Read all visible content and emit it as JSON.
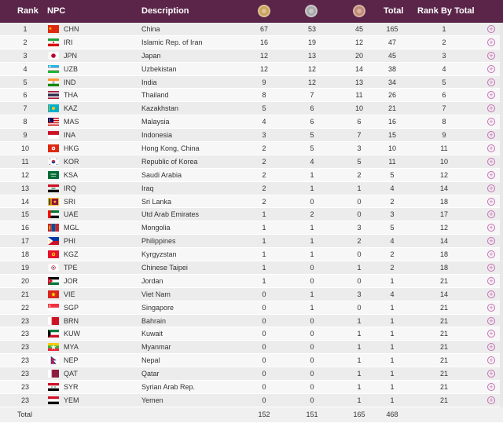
{
  "header": {
    "rank": "Rank",
    "npc": "NPC",
    "description": "Description",
    "total": "Total",
    "rank_by_total": "Rank By Total",
    "gold_icon": "gold-medal-icon",
    "silver_icon": "silver-medal-icon",
    "bronze_icon": "bronze-medal-icon"
  },
  "colors": {
    "header_bg": "#5a2549",
    "accent": "#c76bb5"
  },
  "rows": [
    {
      "rank": "1",
      "code": "CHN",
      "desc": "China",
      "gold": "67",
      "silver": "53",
      "bronze": "45",
      "total": "165",
      "rbt": "1",
      "flag": "chn"
    },
    {
      "rank": "2",
      "code": "IRI",
      "desc": "Islamic Rep. of Iran",
      "gold": "16",
      "silver": "19",
      "bronze": "12",
      "total": "47",
      "rbt": "2",
      "flag": "iri"
    },
    {
      "rank": "3",
      "code": "JPN",
      "desc": "Japan",
      "gold": "12",
      "silver": "13",
      "bronze": "20",
      "total": "45",
      "rbt": "3",
      "flag": "jpn"
    },
    {
      "rank": "4",
      "code": "UZB",
      "desc": "Uzbekistan",
      "gold": "12",
      "silver": "12",
      "bronze": "14",
      "total": "38",
      "rbt": "4",
      "flag": "uzb"
    },
    {
      "rank": "5",
      "code": "IND",
      "desc": "India",
      "gold": "9",
      "silver": "12",
      "bronze": "13",
      "total": "34",
      "rbt": "5",
      "flag": "ind"
    },
    {
      "rank": "6",
      "code": "THA",
      "desc": "Thailand",
      "gold": "8",
      "silver": "7",
      "bronze": "11",
      "total": "26",
      "rbt": "6",
      "flag": "tha"
    },
    {
      "rank": "7",
      "code": "KAZ",
      "desc": "Kazakhstan",
      "gold": "5",
      "silver": "6",
      "bronze": "10",
      "total": "21",
      "rbt": "7",
      "flag": "kaz"
    },
    {
      "rank": "8",
      "code": "MAS",
      "desc": "Malaysia",
      "gold": "4",
      "silver": "6",
      "bronze": "6",
      "total": "16",
      "rbt": "8",
      "flag": "mas"
    },
    {
      "rank": "9",
      "code": "INA",
      "desc": "Indonesia",
      "gold": "3",
      "silver": "5",
      "bronze": "7",
      "total": "15",
      "rbt": "9",
      "flag": "ina"
    },
    {
      "rank": "10",
      "code": "HKG",
      "desc": "Hong Kong, China",
      "gold": "2",
      "silver": "5",
      "bronze": "3",
      "total": "10",
      "rbt": "11",
      "flag": "hkg"
    },
    {
      "rank": "11",
      "code": "KOR",
      "desc": "Republic of Korea",
      "gold": "2",
      "silver": "4",
      "bronze": "5",
      "total": "11",
      "rbt": "10",
      "flag": "kor"
    },
    {
      "rank": "12",
      "code": "KSA",
      "desc": "Saudi Arabia",
      "gold": "2",
      "silver": "1",
      "bronze": "2",
      "total": "5",
      "rbt": "12",
      "flag": "ksa"
    },
    {
      "rank": "13",
      "code": "IRQ",
      "desc": "Iraq",
      "gold": "2",
      "silver": "1",
      "bronze": "1",
      "total": "4",
      "rbt": "14",
      "flag": "irq"
    },
    {
      "rank": "14",
      "code": "SRI",
      "desc": "Sri Lanka",
      "gold": "2",
      "silver": "0",
      "bronze": "0",
      "total": "2",
      "rbt": "18",
      "flag": "sri"
    },
    {
      "rank": "15",
      "code": "UAE",
      "desc": "Utd Arab Emirates",
      "gold": "1",
      "silver": "2",
      "bronze": "0",
      "total": "3",
      "rbt": "17",
      "flag": "uae"
    },
    {
      "rank": "16",
      "code": "MGL",
      "desc": "Mongolia",
      "gold": "1",
      "silver": "1",
      "bronze": "3",
      "total": "5",
      "rbt": "12",
      "flag": "mgl"
    },
    {
      "rank": "17",
      "code": "PHI",
      "desc": "Philippines",
      "gold": "1",
      "silver": "1",
      "bronze": "2",
      "total": "4",
      "rbt": "14",
      "flag": "phi"
    },
    {
      "rank": "18",
      "code": "KGZ",
      "desc": "Kyrgyzstan",
      "gold": "1",
      "silver": "1",
      "bronze": "0",
      "total": "2",
      "rbt": "18",
      "flag": "kgz"
    },
    {
      "rank": "19",
      "code": "TPE",
      "desc": "Chinese Taipei",
      "gold": "1",
      "silver": "0",
      "bronze": "1",
      "total": "2",
      "rbt": "18",
      "flag": "tpe"
    },
    {
      "rank": "20",
      "code": "JOR",
      "desc": "Jordan",
      "gold": "1",
      "silver": "0",
      "bronze": "0",
      "total": "1",
      "rbt": "21",
      "flag": "jor"
    },
    {
      "rank": "21",
      "code": "VIE",
      "desc": "Viet Nam",
      "gold": "0",
      "silver": "1",
      "bronze": "3",
      "total": "4",
      "rbt": "14",
      "flag": "vie"
    },
    {
      "rank": "22",
      "code": "SGP",
      "desc": "Singapore",
      "gold": "0",
      "silver": "1",
      "bronze": "0",
      "total": "1",
      "rbt": "21",
      "flag": "sgp"
    },
    {
      "rank": "23",
      "code": "BRN",
      "desc": "Bahrain",
      "gold": "0",
      "silver": "0",
      "bronze": "1",
      "total": "1",
      "rbt": "21",
      "flag": "brn"
    },
    {
      "rank": "23",
      "code": "KUW",
      "desc": "Kuwait",
      "gold": "0",
      "silver": "0",
      "bronze": "1",
      "total": "1",
      "rbt": "21",
      "flag": "kuw"
    },
    {
      "rank": "23",
      "code": "MYA",
      "desc": "Myanmar",
      "gold": "0",
      "silver": "0",
      "bronze": "1",
      "total": "1",
      "rbt": "21",
      "flag": "mya"
    },
    {
      "rank": "23",
      "code": "NEP",
      "desc": "Nepal",
      "gold": "0",
      "silver": "0",
      "bronze": "1",
      "total": "1",
      "rbt": "21",
      "flag": "nep"
    },
    {
      "rank": "23",
      "code": "QAT",
      "desc": "Qatar",
      "gold": "0",
      "silver": "0",
      "bronze": "1",
      "total": "1",
      "rbt": "21",
      "flag": "qat"
    },
    {
      "rank": "23",
      "code": "SYR",
      "desc": "Syrian Arab Rep.",
      "gold": "0",
      "silver": "0",
      "bronze": "1",
      "total": "1",
      "rbt": "21",
      "flag": "syr"
    },
    {
      "rank": "23",
      "code": "YEM",
      "desc": "Yemen",
      "gold": "0",
      "silver": "0",
      "bronze": "1",
      "total": "1",
      "rbt": "21",
      "flag": "yem"
    }
  ],
  "totals": {
    "label": "Total",
    "gold": "152",
    "silver": "151",
    "bronze": "165",
    "total": "468"
  }
}
